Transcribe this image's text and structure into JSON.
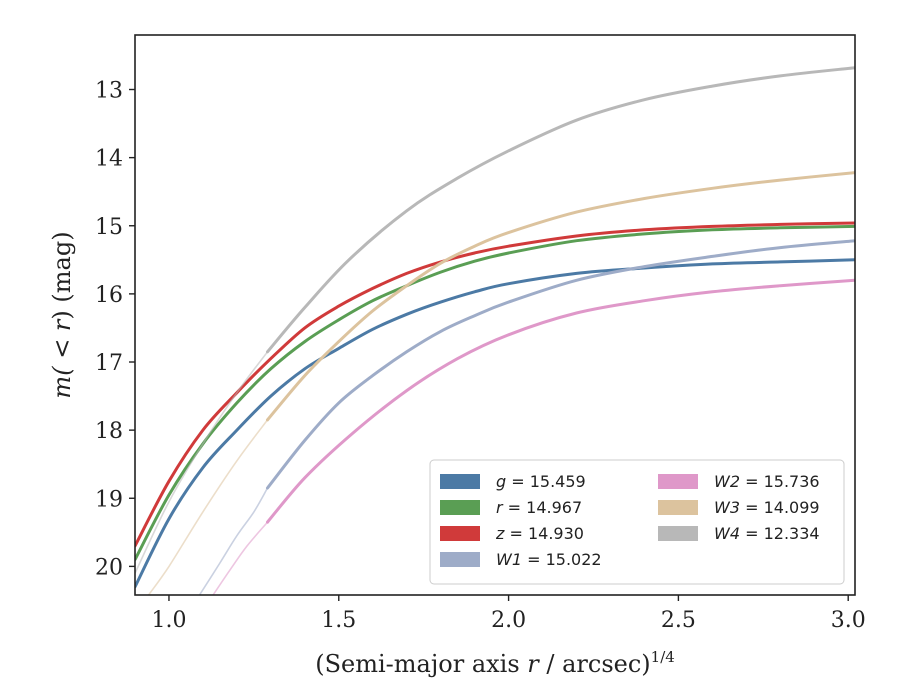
{
  "chart_data": {
    "type": "line",
    "xlabel": "(Semi-major axis r / arcsec)",
    "xlabel_italic": "r",
    "xlabel_prefix": "(Semi-major axis ",
    "xlabel_suffix": " / arcsec)",
    "xlabel_superscript": "1/4",
    "ylabel": "m(< r) (mag)",
    "ylabel_func": "m(",
    "ylabel_lt": " < ",
    "ylabel_var": "r",
    "ylabel_close": ") (mag)",
    "xlim": [
      0.9,
      3.02
    ],
    "ylim": [
      20.42,
      12.2
    ],
    "y_inverted": true,
    "xticks": [
      1.0,
      1.5,
      2.0,
      2.5,
      3.0
    ],
    "xtick_labels": [
      "1.0",
      "1.5",
      "2.0",
      "2.5",
      "3.0"
    ],
    "yticks": [
      13,
      14,
      15,
      16,
      17,
      18,
      19,
      20
    ],
    "ytick_labels": [
      "13",
      "14",
      "15",
      "16",
      "17",
      "18",
      "19",
      "20"
    ],
    "grid": false,
    "legend_position": "lower-right",
    "series": [
      {
        "name": "g",
        "label": "15.459",
        "color": "#4c7aa5",
        "x": [
          0.9,
          1.0,
          1.1,
          1.2,
          1.3,
          1.4,
          1.5,
          1.6,
          1.7,
          1.8,
          1.9,
          2.0,
          2.2,
          2.4,
          2.6,
          2.8,
          3.02
        ],
        "y": [
          20.3,
          19.3,
          18.55,
          18.0,
          17.5,
          17.1,
          16.8,
          16.52,
          16.3,
          16.12,
          15.97,
          15.85,
          15.7,
          15.62,
          15.56,
          15.53,
          15.5
        ],
        "faint_x": [],
        "faint_y": []
      },
      {
        "name": "r",
        "label": "14.967",
        "color": "#5a9e54",
        "x": [
          0.9,
          1.0,
          1.1,
          1.2,
          1.3,
          1.4,
          1.5,
          1.6,
          1.7,
          1.8,
          1.9,
          2.0,
          2.2,
          2.4,
          2.6,
          2.8,
          3.02
        ],
        "y": [
          19.9,
          18.95,
          18.2,
          17.6,
          17.1,
          16.7,
          16.38,
          16.1,
          15.88,
          15.68,
          15.52,
          15.4,
          15.22,
          15.12,
          15.06,
          15.03,
          15.01
        ],
        "faint_x": [],
        "faint_y": []
      },
      {
        "name": "z",
        "label": "14.930",
        "color": "#d03a3a",
        "x": [
          0.9,
          1.0,
          1.1,
          1.2,
          1.3,
          1.4,
          1.5,
          1.6,
          1.7,
          1.8,
          1.9,
          2.0,
          2.2,
          2.4,
          2.6,
          2.8,
          3.02
        ],
        "y": [
          19.7,
          18.75,
          18.0,
          17.45,
          16.95,
          16.5,
          16.18,
          15.92,
          15.7,
          15.53,
          15.4,
          15.3,
          15.15,
          15.06,
          15.01,
          14.98,
          14.96
        ],
        "faint_x": [],
        "faint_y": []
      },
      {
        "name": "W1",
        "label": "15.022",
        "color": "#9eacc8",
        "x": [
          1.29,
          1.4,
          1.5,
          1.6,
          1.7,
          1.8,
          1.9,
          2.0,
          2.2,
          2.4,
          2.6,
          2.8,
          3.02
        ],
        "y": [
          18.85,
          18.15,
          17.6,
          17.2,
          16.85,
          16.55,
          16.32,
          16.12,
          15.8,
          15.6,
          15.45,
          15.32,
          15.22
        ],
        "faint_x": [
          1.09,
          1.15,
          1.2,
          1.25,
          1.29
        ],
        "faint_y": [
          20.42,
          19.95,
          19.55,
          19.2,
          18.85
        ]
      },
      {
        "name": "W2",
        "label": "15.736",
        "color": "#df98c9",
        "x": [
          1.29,
          1.4,
          1.54,
          1.7,
          1.85,
          2.0,
          2.2,
          2.4,
          2.6,
          2.8,
          3.02
        ],
        "y": [
          19.35,
          18.7,
          18.05,
          17.42,
          16.95,
          16.6,
          16.28,
          16.1,
          15.97,
          15.88,
          15.8
        ],
        "faint_x": [
          1.13,
          1.18,
          1.23,
          1.29
        ],
        "faint_y": [
          20.42,
          20.05,
          19.7,
          19.35
        ]
      },
      {
        "name": "W3",
        "label": "14.099",
        "color": "#dcc39e",
        "x": [
          1.29,
          1.4,
          1.5,
          1.6,
          1.7,
          1.8,
          1.9,
          2.0,
          2.2,
          2.4,
          2.6,
          2.8,
          3.02
        ],
        "y": [
          17.85,
          17.2,
          16.7,
          16.25,
          15.88,
          15.55,
          15.3,
          15.1,
          14.8,
          14.6,
          14.45,
          14.33,
          14.22
        ],
        "faint_x": [
          0.94,
          1.0,
          1.1,
          1.2,
          1.29
        ],
        "faint_y": [
          20.42,
          20.0,
          19.2,
          18.45,
          17.85
        ]
      },
      {
        "name": "W4",
        "label": "12.334",
        "color": "#b8b8b8",
        "x": [
          1.29,
          1.4,
          1.53,
          1.7,
          1.85,
          2.0,
          2.2,
          2.4,
          2.6,
          2.8,
          3.02
        ],
        "y": [
          16.85,
          16.2,
          15.5,
          14.78,
          14.3,
          13.9,
          13.45,
          13.15,
          12.95,
          12.8,
          12.68
        ],
        "faint_x": [
          0.9,
          1.0,
          1.1,
          1.2,
          1.29
        ],
        "faint_y": [
          20.1,
          19.05,
          18.2,
          17.45,
          16.85
        ]
      }
    ]
  }
}
